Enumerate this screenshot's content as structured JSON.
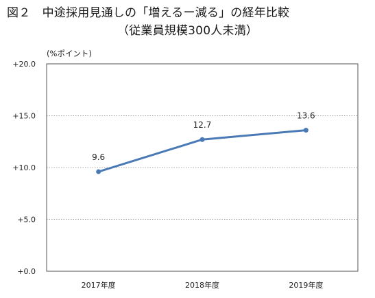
{
  "header": {
    "title_line1": "図２　中途採用見通しの「増えるー減る」の経年比較",
    "title_line2": "（従業員規模300人未満）"
  },
  "chart_data": {
    "type": "line",
    "unit_label": "(%ポイント)",
    "categories": [
      "2017年度",
      "2018年度",
      "2019年度"
    ],
    "series": [
      {
        "values": [
          9.6,
          12.7,
          13.6
        ]
      }
    ],
    "data_labels": [
      "9.6",
      "12.7",
      "13.6"
    ],
    "y_ticks": [
      0,
      5,
      10,
      15,
      20
    ],
    "y_tick_labels": [
      "+0.0",
      "+5.0",
      "+10.0",
      "+15.0",
      "+20.0"
    ],
    "ylim": [
      0,
      20
    ],
    "grid": true,
    "colors": {
      "line": "#4a7ab5",
      "grid": "#8c8c8c",
      "frame": "#555555"
    }
  }
}
